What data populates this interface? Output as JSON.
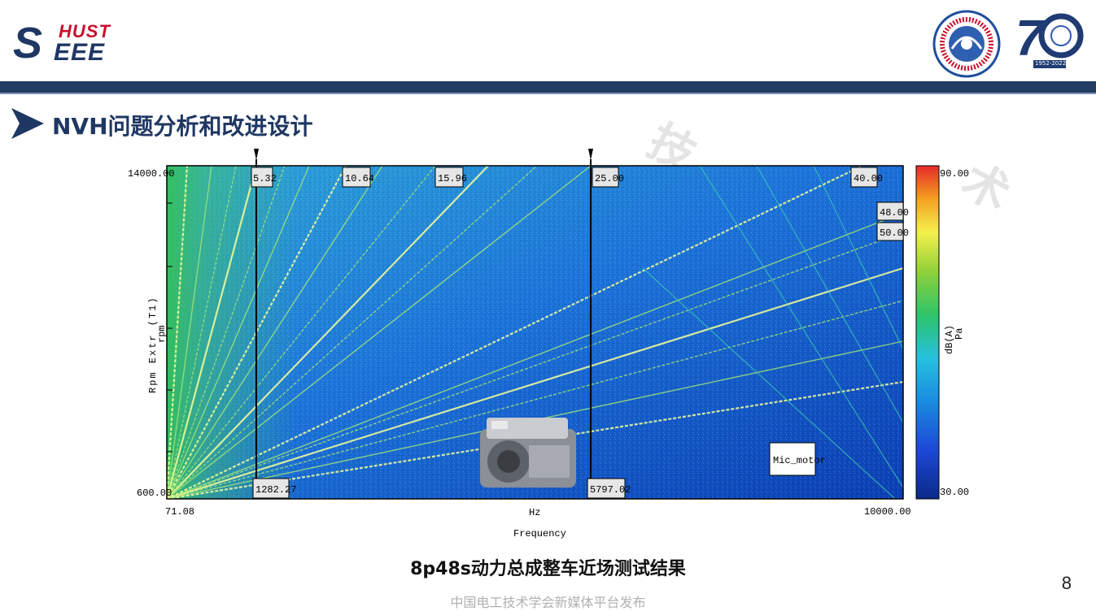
{
  "header": {
    "logo_hust": "HUST",
    "logo_eee": "EEE",
    "logo_s": "S",
    "anniversary_number": "70",
    "anniversary_years": "1952-2022"
  },
  "section": {
    "title": "NVH问题分析和改进设计"
  },
  "watermark_text": [
    "技",
    "术"
  ],
  "spectrogram": {
    "y_axis_label": "Rpm Extr (T1)",
    "y_axis_unit": "rpm",
    "y_top_label": "14000.00",
    "y_bottom_label": "600.00",
    "x_left_label": "71.08",
    "x_right_label": "10000.00",
    "x_unit_label": "Hz",
    "x_axis_label": "Frequency",
    "order_labels": [
      "5.32",
      "10.64",
      "15.96",
      "25.00",
      "40.00",
      "48.00",
      "50.00"
    ],
    "cursor_labels": [
      "1282.27",
      "5797.02"
    ],
    "legend_box": "Mic_motor",
    "colorbar_unit": "dB(A)",
    "colorbar_sub_unit": "Pa",
    "colorbar_max": "90.00",
    "colorbar_min": "30.00",
    "colors": {
      "background": "#1a56c8",
      "order_line": "#f5ff9a"
    }
  },
  "caption": "8p48s动力总成整车近场测试结果",
  "page_number": "8",
  "footer": "中国电工技术学会新媒体平台发布"
}
